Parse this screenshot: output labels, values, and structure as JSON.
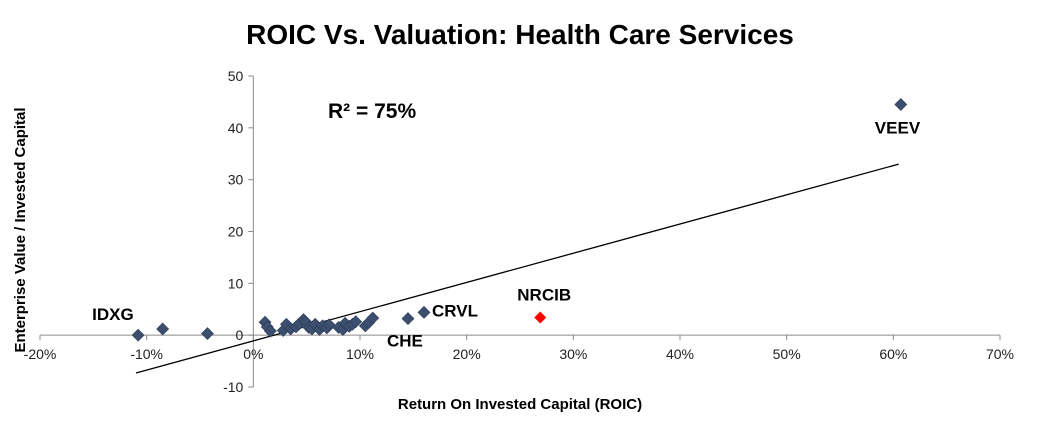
{
  "chart_data": {
    "type": "scatter",
    "title": "ROIC Vs. Valuation: Health Care Services",
    "xlabel": "Return On Invested Capital (ROIC)",
    "ylabel": "Enterprise Value / Invested Capital",
    "xlim": [
      -0.2,
      0.7
    ],
    "ylim": [
      -10,
      50
    ],
    "x_ticks": [
      -0.2,
      -0.1,
      0,
      0.1,
      0.2,
      0.3,
      0.4,
      0.5,
      0.6,
      0.7
    ],
    "x_tick_labels": [
      "-20%",
      "-10%",
      "0%",
      "10%",
      "20%",
      "30%",
      "40%",
      "50%",
      "60%",
      "70%"
    ],
    "y_ticks": [
      -10,
      0,
      10,
      20,
      30,
      40,
      50
    ],
    "y_tick_labels": [
      "-10",
      "0",
      "10",
      "20",
      "30",
      "40",
      "50"
    ],
    "grid": false,
    "annotation": "R² = 75%",
    "trendline": {
      "x": [
        -0.11,
        0.605
      ],
      "y": [
        -7.3,
        33.0
      ]
    },
    "colors": {
      "series": "#3c4f6f",
      "highlight": "#ff0000",
      "trendline": "#000000"
    },
    "points": [
      {
        "x": -0.108,
        "y": 0.0,
        "label": "IDXG"
      },
      {
        "x": -0.085,
        "y": 1.2
      },
      {
        "x": -0.043,
        "y": 0.3
      },
      {
        "x": 0.011,
        "y": 2.5
      },
      {
        "x": 0.013,
        "y": 1.6
      },
      {
        "x": 0.016,
        "y": 0.8
      },
      {
        "x": 0.028,
        "y": 0.9
      },
      {
        "x": 0.031,
        "y": 2.1
      },
      {
        "x": 0.035,
        "y": 1.2
      },
      {
        "x": 0.04,
        "y": 1.6
      },
      {
        "x": 0.043,
        "y": 2.2
      },
      {
        "x": 0.047,
        "y": 3.0
      },
      {
        "x": 0.049,
        "y": 2.6
      },
      {
        "x": 0.052,
        "y": 1.5
      },
      {
        "x": 0.055,
        "y": 1.2
      },
      {
        "x": 0.058,
        "y": 2.1
      },
      {
        "x": 0.062,
        "y": 1.1
      },
      {
        "x": 0.065,
        "y": 1.8
      },
      {
        "x": 0.069,
        "y": 1.4
      },
      {
        "x": 0.071,
        "y": 2.0
      },
      {
        "x": 0.08,
        "y": 1.5
      },
      {
        "x": 0.084,
        "y": 1.1
      },
      {
        "x": 0.086,
        "y": 2.3
      },
      {
        "x": 0.09,
        "y": 1.7
      },
      {
        "x": 0.093,
        "y": 2.1
      },
      {
        "x": 0.096,
        "y": 2.6
      },
      {
        "x": 0.105,
        "y": 1.8
      },
      {
        "x": 0.108,
        "y": 2.4
      },
      {
        "x": 0.112,
        "y": 3.3
      },
      {
        "x": 0.145,
        "y": 3.2,
        "label": "CHE"
      },
      {
        "x": 0.16,
        "y": 4.4,
        "label": "CRVL"
      },
      {
        "x": 0.269,
        "y": 3.4,
        "label": "NRCIB",
        "highlight": true
      },
      {
        "x": 0.607,
        "y": 44.5,
        "label": "VEEV"
      }
    ]
  }
}
